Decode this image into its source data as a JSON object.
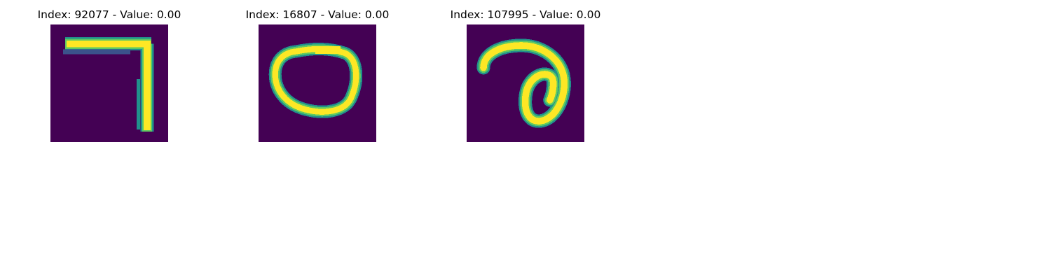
{
  "panels": [
    {
      "title": "Index: 92077 - Value: 0.00",
      "glyph": "digit-seven"
    },
    {
      "title": "Index: 16807 - Value: 0.00",
      "glyph": "ring-zero"
    },
    {
      "title": "Index: 107995 - Value: 0.00",
      "glyph": "curl-stroke"
    }
  ],
  "colors": {
    "background": "#440154",
    "stroke_edge": "#21918c",
    "stroke_mid": "#5ec962",
    "stroke_core": "#fde725"
  }
}
